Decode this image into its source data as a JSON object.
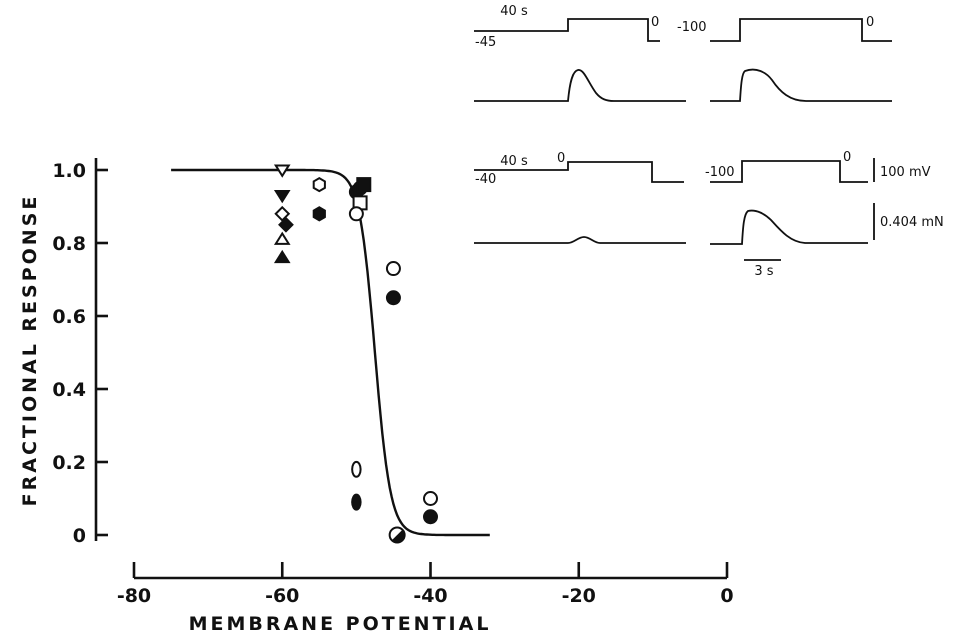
{
  "chart_data": {
    "type": "scatter",
    "xlabel": "MEMBRANE POTENTIAL",
    "ylabel": "FRACTIONAL RESPONSE",
    "x_ticks": [
      "-80",
      "-60",
      "-40",
      "-20",
      "0"
    ],
    "y_ticks": [
      "0",
      "0.2",
      "0.4",
      "0.6",
      "0.8",
      "1.0"
    ],
    "xlim": [
      -80,
      0
    ],
    "ylim": [
      0,
      1
    ],
    "grid": false,
    "fit_curve": {
      "description": "sigmoid",
      "x_range": [
        -75,
        -32
      ],
      "midpoint": -47.5
    },
    "points": [
      {
        "x": -60,
        "y": 1.0,
        "marker": "triangle-down-open"
      },
      {
        "x": -60,
        "y": 0.93,
        "marker": "triangle-down-filled"
      },
      {
        "x": -60,
        "y": 0.88,
        "marker": "diamond-open"
      },
      {
        "x": -59.5,
        "y": 0.85,
        "marker": "diamond-filled"
      },
      {
        "x": -60,
        "y": 0.81,
        "marker": "triangle-up-open"
      },
      {
        "x": -60,
        "y": 0.76,
        "marker": "triangle-up-filled"
      },
      {
        "x": -55,
        "y": 0.96,
        "marker": "hexagon-open"
      },
      {
        "x": -55,
        "y": 0.88,
        "marker": "hexagon-filled"
      },
      {
        "x": -50,
        "y": 0.94,
        "marker": "circle-filled"
      },
      {
        "x": -49.5,
        "y": 0.95,
        "marker": "circle-filled"
      },
      {
        "x": -49,
        "y": 0.96,
        "marker": "square-filled"
      },
      {
        "x": -49.5,
        "y": 0.91,
        "marker": "square-open"
      },
      {
        "x": -50,
        "y": 0.88,
        "marker": "circle-open"
      },
      {
        "x": -50,
        "y": 0.18,
        "marker": "ellipse-open"
      },
      {
        "x": -50,
        "y": 0.09,
        "marker": "ellipse-filled"
      },
      {
        "x": -45,
        "y": 0.73,
        "marker": "circle-open"
      },
      {
        "x": -45,
        "y": 0.65,
        "marker": "circle-filled"
      },
      {
        "x": -44.5,
        "y": 0.0,
        "marker": "circle-half-filled"
      },
      {
        "x": -40,
        "y": 0.1,
        "marker": "circle-open"
      },
      {
        "x": -40,
        "y": 0.05,
        "marker": "circle-filled"
      }
    ]
  },
  "insets": {
    "top": {
      "hold_label": "40 s",
      "hold_potential_left": "-45",
      "zero_label_left": "0",
      "hold_potential_right": "-100",
      "zero_label_right": "0"
    },
    "bottom": {
      "hold_label": "40 s",
      "hold_potential_left": "-40",
      "zero_label_left": "0",
      "hold_potential_right": "-100",
      "zero_label_right": "0"
    },
    "scale_voltage": "100 mV",
    "scale_force": "0.404 mN",
    "scale_time": "3 s"
  }
}
